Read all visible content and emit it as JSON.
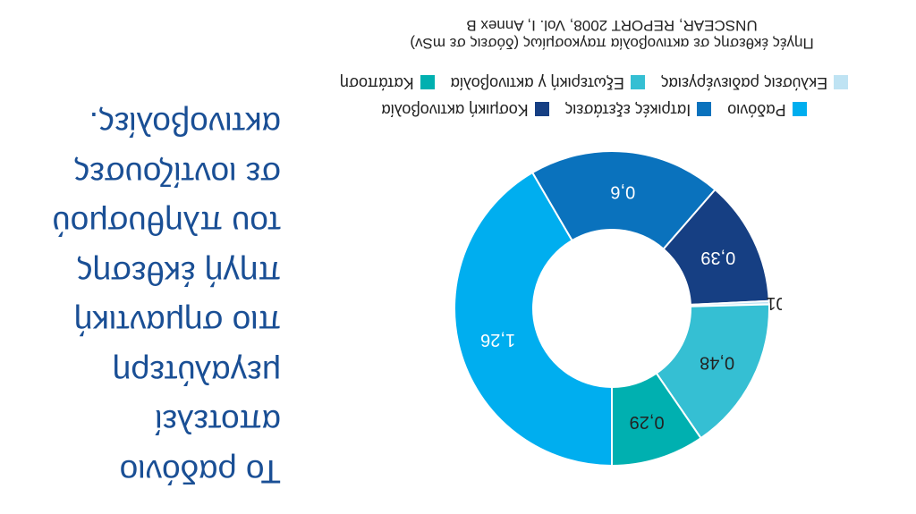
{
  "headline": {
    "lines": [
      "Το ραδόνιο",
      "αποτελεί",
      "μεγαλύτερη",
      "πιο σημαντική",
      "πηγή έκθεσης",
      "του πληθυσμού",
      "σε ιοντίζουσες",
      "ακτινοβολίες."
    ]
  },
  "chart_data": {
    "type": "pie",
    "donut": true,
    "title": "Πηγές έκθεσης σε ακτινοβολία παγκοσμίως (δόσεις σε mSv)",
    "subtitle": "UNSCEAR, REPORT 2008, Vol. I, Annex B",
    "legend_position": "top",
    "categories": [
      "Ραδόνιο",
      "Ιατρικές εξετάσεις",
      "Κοσμική ακτινοβολία",
      "Εκλύσεις ραδιενέργειας",
      "Εξωτερική γ ακτινοβολία",
      "Κατάποση"
    ],
    "values": [
      1.26,
      0.6,
      0.39,
      0.01,
      0.48,
      0.29
    ],
    "value_labels": [
      "1,26",
      "0,6",
      "0,39",
      "0,01",
      "0,48",
      "0,29"
    ],
    "colors": [
      "#00aeef",
      "#0a72bd",
      "#163f83",
      "#bfe3f3",
      "#35bfd3",
      "#00b0b0"
    ],
    "label_colors": [
      "#ffffff",
      "#ffffff",
      "#ffffff",
      "#222222",
      "#222222",
      "#222222"
    ]
  }
}
